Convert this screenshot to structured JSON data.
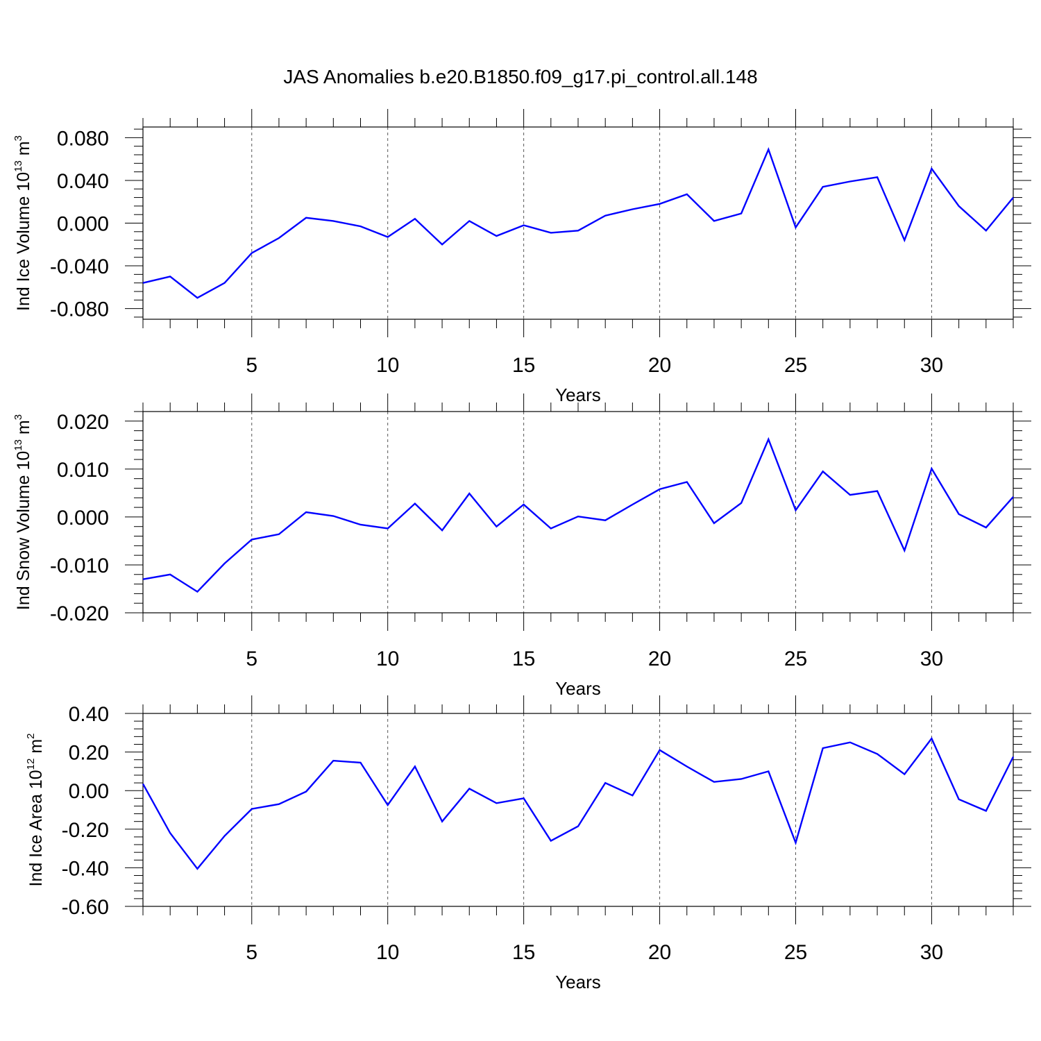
{
  "title": "JAS Anomalies b.e20.B1850.f09_g17.pi_control.all.148",
  "chart_data": [
    {
      "type": "line",
      "ylabel_main": "Ind Ice Volume 10",
      "ylabel_exp": "13",
      "ylabel_unit": " m",
      "ylabel_unit_exp": "3",
      "xlabel": "Years",
      "xlim": [
        1,
        33
      ],
      "ylim": [
        -0.09,
        0.09
      ],
      "yticks": [
        -0.08,
        -0.04,
        0.0,
        0.04,
        0.08
      ],
      "ytick_labels": [
        "-0.080",
        "-0.040",
        "0.000",
        "0.040",
        "0.080"
      ],
      "xticks": [
        5,
        10,
        15,
        20,
        25,
        30
      ],
      "xtick_labels": [
        "5",
        "10",
        "15",
        "20",
        "25",
        "30"
      ],
      "line_color": "#0000ff",
      "x": [
        1,
        2,
        3,
        4,
        5,
        6,
        7,
        8,
        9,
        10,
        11,
        12,
        13,
        14,
        15,
        16,
        17,
        18,
        19,
        20,
        21,
        22,
        23,
        24,
        25,
        26,
        27,
        28,
        29,
        30,
        31,
        32,
        33
      ],
      "values": [
        -0.056,
        -0.05,
        -0.07,
        -0.056,
        -0.028,
        -0.014,
        0.005,
        0.002,
        -0.003,
        -0.013,
        0.004,
        -0.02,
        0.002,
        -0.012,
        -0.002,
        -0.009,
        -0.007,
        0.007,
        0.013,
        0.018,
        0.027,
        0.002,
        0.009,
        0.069,
        -0.004,
        0.034,
        0.039,
        0.043,
        -0.016,
        0.051,
        0.016,
        -0.007,
        0.024
      ]
    },
    {
      "type": "line",
      "ylabel_main": "Ind Snow Volume 10",
      "ylabel_exp": "13",
      "ylabel_unit": " m",
      "ylabel_unit_exp": "3",
      "xlabel": "Years",
      "xlim": [
        1,
        33
      ],
      "ylim": [
        -0.02,
        0.022
      ],
      "yticks": [
        -0.02,
        -0.01,
        0.0,
        0.01,
        0.02
      ],
      "ytick_labels": [
        "-0.020",
        "-0.010",
        "0.000",
        "0.010",
        "0.020"
      ],
      "xticks": [
        5,
        10,
        15,
        20,
        25,
        30
      ],
      "xtick_labels": [
        "5",
        "10",
        "15",
        "20",
        "25",
        "30"
      ],
      "line_color": "#0000ff",
      "x": [
        1,
        2,
        3,
        4,
        5,
        6,
        7,
        8,
        9,
        10,
        11,
        12,
        13,
        14,
        15,
        16,
        17,
        18,
        19,
        20,
        21,
        22,
        23,
        24,
        25,
        26,
        27,
        28,
        29,
        30,
        31,
        32,
        33
      ],
      "values": [
        -0.013,
        -0.012,
        -0.0156,
        -0.0097,
        -0.0047,
        -0.0036,
        0.001,
        0.0002,
        -0.0016,
        -0.0024,
        0.0028,
        -0.0028,
        0.0049,
        -0.002,
        0.0026,
        -0.0024,
        0.0001,
        -0.0007,
        0.0026,
        0.0058,
        0.0073,
        -0.0013,
        0.0029,
        0.0162,
        0.0014,
        0.0095,
        0.0046,
        0.0054,
        -0.007,
        0.0101,
        0.0006,
        -0.0022,
        0.0042
      ]
    },
    {
      "type": "line",
      "ylabel_main": "Ind Ice Area 10",
      "ylabel_exp": "12",
      "ylabel_unit": " m",
      "ylabel_unit_exp": "2",
      "xlabel": "Years",
      "xlim": [
        1,
        33
      ],
      "ylim": [
        -0.6,
        0.4
      ],
      "yticks": [
        -0.6,
        -0.4,
        -0.2,
        0.0,
        0.2,
        0.4
      ],
      "ytick_labels": [
        "-0.60",
        "-0.40",
        "-0.20",
        "0.00",
        "0.20",
        "0.40"
      ],
      "xticks": [
        5,
        10,
        15,
        20,
        25,
        30
      ],
      "xtick_labels": [
        "5",
        "10",
        "15",
        "20",
        "25",
        "30"
      ],
      "line_color": "#0000ff",
      "x": [
        1,
        2,
        3,
        4,
        5,
        6,
        7,
        8,
        9,
        10,
        11,
        12,
        13,
        14,
        15,
        16,
        17,
        18,
        19,
        20,
        21,
        22,
        23,
        24,
        25,
        26,
        27,
        28,
        29,
        30,
        31,
        32,
        33
      ],
      "values": [
        0.035,
        -0.22,
        -0.405,
        -0.235,
        -0.095,
        -0.07,
        -0.005,
        0.155,
        0.145,
        -0.075,
        0.125,
        -0.16,
        0.01,
        -0.065,
        -0.04,
        -0.26,
        -0.185,
        0.04,
        -0.025,
        0.21,
        0.125,
        0.045,
        0.06,
        0.1,
        -0.27,
        0.22,
        0.25,
        0.19,
        0.085,
        0.27,
        -0.045,
        -0.105,
        0.175
      ]
    }
  ]
}
